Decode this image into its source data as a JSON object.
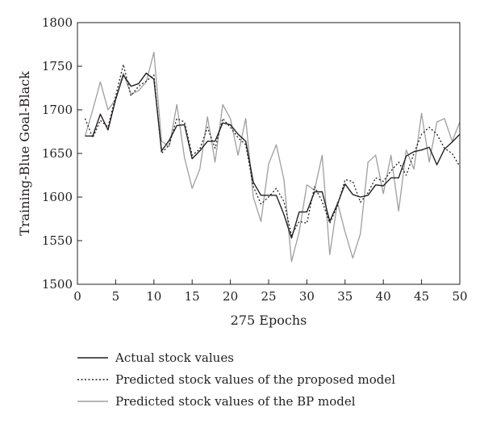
{
  "chart_data": {
    "type": "line",
    "xlabel": "275 Epochs",
    "ylabel": "Training-Blue Goal-Black",
    "xlim": [
      0,
      50
    ],
    "ylim": [
      1500,
      1800
    ],
    "xticks": [
      0,
      5,
      10,
      15,
      20,
      25,
      30,
      35,
      40,
      45,
      50
    ],
    "yticks": [
      1500,
      1550,
      1600,
      1650,
      1700,
      1750,
      1800
    ],
    "grid": false,
    "legend_position": "bottom",
    "series": [
      {
        "name": "Actual stock values",
        "style": "solid-black",
        "x": [
          1,
          2,
          3,
          4,
          5,
          6,
          7,
          8,
          9,
          10,
          11,
          12,
          13,
          14,
          15,
          16,
          17,
          18,
          19,
          20,
          21,
          22,
          23,
          24,
          25,
          26,
          27,
          28,
          29,
          30,
          31,
          32,
          33,
          34,
          35,
          36,
          37,
          38,
          39,
          40,
          41,
          42,
          43,
          44,
          45,
          46,
          47,
          48,
          49,
          50
        ],
        "y": [
          1670,
          1670,
          1695,
          1677,
          1712,
          1740,
          1727,
          1730,
          1742,
          1735,
          1653,
          1665,
          1682,
          1683,
          1644,
          1653,
          1664,
          1664,
          1685,
          1683,
          1672,
          1664,
          1617,
          1602,
          1602,
          1602,
          1580,
          1553,
          1583,
          1583,
          1606,
          1606,
          1572,
          1592,
          1615,
          1603,
          1600,
          1602,
          1614,
          1613,
          1622,
          1622,
          1647,
          1652,
          1654,
          1657,
          1637,
          1655,
          1663,
          1672
        ]
      },
      {
        "name": "Predicted stock values of the proposed model",
        "style": "dotted-black",
        "x": [
          1,
          2,
          3,
          4,
          5,
          6,
          7,
          8,
          9,
          10,
          11,
          12,
          13,
          14,
          15,
          16,
          17,
          18,
          19,
          20,
          21,
          22,
          23,
          24,
          25,
          26,
          27,
          28,
          29,
          30,
          31,
          32,
          33,
          34,
          35,
          36,
          37,
          38,
          39,
          40,
          41,
          42,
          43,
          44,
          45,
          46,
          47,
          48,
          49,
          50
        ],
        "y": [
          1690,
          1668,
          1688,
          1680,
          1716,
          1752,
          1716,
          1727,
          1733,
          1740,
          1650,
          1660,
          1690,
          1686,
          1648,
          1655,
          1680,
          1656,
          1690,
          1680,
          1668,
          1660,
          1612,
          1592,
          1600,
          1610,
          1595,
          1556,
          1572,
          1570,
          1612,
          1595,
          1570,
          1590,
          1620,
          1618,
          1594,
          1605,
          1622,
          1618,
          1630,
          1640,
          1625,
          1650,
          1672,
          1680,
          1672,
          1656,
          1650,
          1635
        ]
      },
      {
        "name": "Predicted stock values of the BP model",
        "style": "solid-gray",
        "x": [
          1,
          2,
          3,
          4,
          5,
          6,
          7,
          8,
          9,
          10,
          11,
          12,
          13,
          14,
          15,
          16,
          17,
          18,
          19,
          20,
          21,
          22,
          23,
          24,
          25,
          26,
          27,
          28,
          29,
          30,
          31,
          32,
          33,
          34,
          35,
          36,
          37,
          38,
          39,
          40,
          41,
          42,
          43,
          44,
          45,
          46,
          47,
          48,
          49,
          50
        ],
        "y": [
          1670,
          1700,
          1732,
          1700,
          1712,
          1742,
          1718,
          1722,
          1732,
          1766,
          1664,
          1658,
          1706,
          1645,
          1610,
          1632,
          1692,
          1640,
          1706,
          1690,
          1648,
          1690,
          1600,
          1572,
          1638,
          1660,
          1620,
          1526,
          1560,
          1614,
          1608,
          1648,
          1534,
          1594,
          1560,
          1530,
          1558,
          1640,
          1648,
          1604,
          1648,
          1584,
          1654,
          1632,
          1696,
          1640,
          1686,
          1690,
          1664,
          1686
        ]
      }
    ]
  }
}
